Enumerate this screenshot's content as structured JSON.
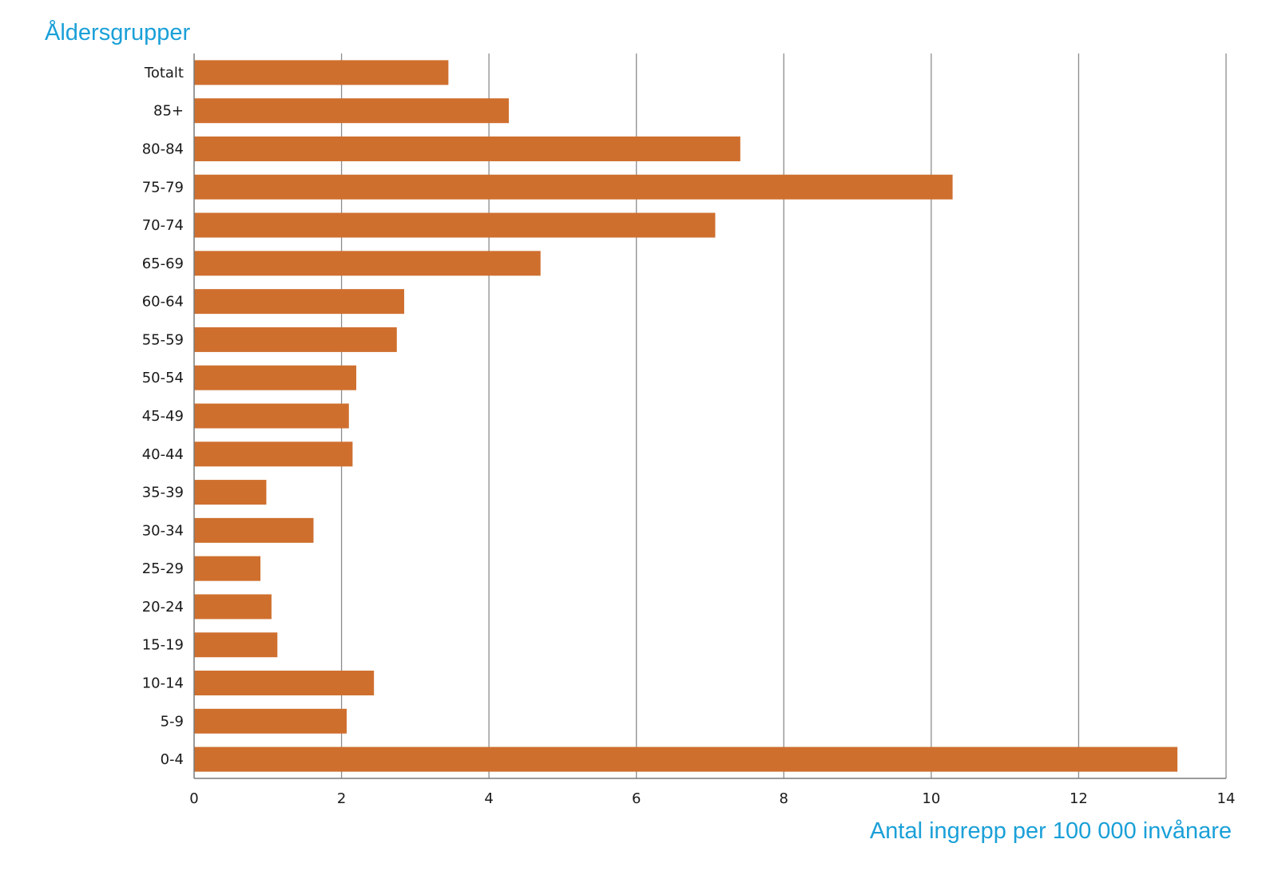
{
  "chart_data": {
    "type": "bar",
    "orientation": "horizontal",
    "ylabel": "Åldersgrupper",
    "xlabel": "Antal ingrepp per 100 000 invånare",
    "xlim": [
      0,
      14
    ],
    "xticks": [
      0,
      2,
      4,
      6,
      8,
      10,
      12,
      14
    ],
    "grid": true,
    "categories": [
      "Totalt",
      "85+",
      "80-84",
      "75-79",
      "70-74",
      "65-69",
      "60-64",
      "55-59",
      "50-54",
      "45-49",
      "40-44",
      "35-39",
      "30-34",
      "25-29",
      "20-24",
      "15-19",
      "10-14",
      "5-9",
      "0-4"
    ],
    "values": [
      3.45,
      4.27,
      7.41,
      10.29,
      7.07,
      4.7,
      2.85,
      2.75,
      2.2,
      2.1,
      2.15,
      0.98,
      1.62,
      0.9,
      1.05,
      1.13,
      2.44,
      2.07,
      13.34
    ],
    "bar_color": "#cf6f2e"
  }
}
